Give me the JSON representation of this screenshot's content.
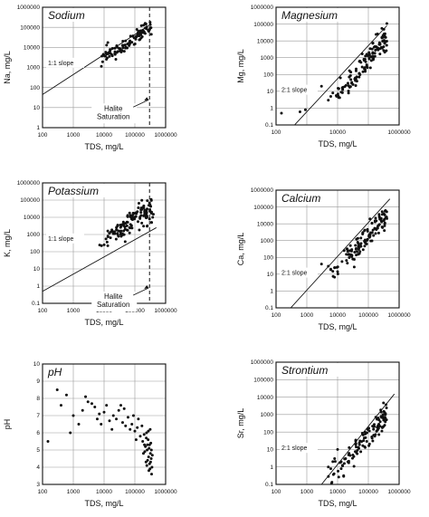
{
  "chart_data": [
    {
      "type": "scatter",
      "title": "Sodium",
      "xlabel": "TDS, mg/L",
      "ylabel": "Na, mg/L",
      "xscale": "log",
      "yscale": "log",
      "xlim": [
        100,
        1000000
      ],
      "ylim": [
        1,
        1000000
      ],
      "xticks": [
        "100",
        "1000",
        "10000",
        "100000",
        "1000000"
      ],
      "yticks": [
        "1",
        "10",
        "100",
        "1000",
        "10000",
        "100000",
        "1000000"
      ],
      "grid": true,
      "reference_line": {
        "label": "1:1 slope",
        "slope": 1,
        "points": [
          [
            100,
            45
          ],
          [
            300000,
            130000
          ]
        ]
      },
      "vertical_line": {
        "x": 300000,
        "style": "dashed"
      },
      "annotation": {
        "lines": [
          "Halite",
          "Saturation"
        ],
        "arrow_to": [
          300000,
          30
        ]
      },
      "cluster": {
        "x_range": [
          5000,
          350000
        ],
        "relation": "power",
        "coef": 0.3,
        "exp": 1,
        "spread": 0.18,
        "count": 110,
        "seed": 11
      }
    },
    {
      "type": "scatter",
      "title": "Magnesium",
      "xlabel": "TDS, mg/L",
      "ylabel": "Mg, mg/L",
      "xscale": "log",
      "yscale": "log",
      "xlim": [
        100,
        1000000
      ],
      "ylim": [
        0.1,
        1000000
      ],
      "xticks": [
        "100",
        "10000",
        "1000000"
      ],
      "yticks": [
        "0.1",
        "1",
        "10",
        "100",
        "1000",
        "10000",
        "100000",
        "1000000"
      ],
      "grid": true,
      "reference_line": {
        "label": "2:1 slope",
        "slope": 2,
        "points": [
          [
            400,
            0.1
          ],
          [
            400000,
            80000
          ]
        ]
      },
      "cluster": {
        "x_range": [
          5000,
          400000
        ],
        "relation": "power",
        "coef": 3e-08,
        "exp": 2.1,
        "spread": 0.35,
        "count": 130,
        "seed": 23
      },
      "outliers": [
        [
          150,
          0.5
        ],
        [
          600,
          0.6
        ],
        [
          900,
          0.8
        ],
        [
          3000,
          20
        ],
        [
          5000,
          3
        ],
        [
          6000,
          5
        ],
        [
          7000,
          8
        ]
      ]
    },
    {
      "type": "scatter",
      "title": "Potassium",
      "xlabel": "TDS, mg/L",
      "ylabel": "K, mg/L",
      "xscale": "log",
      "yscale": "log",
      "xlim": [
        100,
        1000000
      ],
      "ylim": [
        0.1,
        1000000
      ],
      "xticks": [
        "100",
        "1000",
        "10000",
        "100000",
        "1000000"
      ],
      "yticks": [
        "0.1",
        "1",
        "10",
        "100",
        "1000",
        "10000",
        "100000",
        "1000000"
      ],
      "grid": true,
      "reference_line": {
        "label": "1:1 slope",
        "slope": 1,
        "points": [
          [
            100,
            0.5
          ],
          [
            500000,
            2500
          ]
        ]
      },
      "vertical_line": {
        "x": 300000,
        "style": "dashed"
      },
      "annotation": {
        "lines": [
          "Halite",
          "Saturation"
        ],
        "arrow_to": [
          300000,
          1
        ]
      },
      "cluster": {
        "x_range": [
          5000,
          350000
        ],
        "relation": "power",
        "coef": 0.004,
        "exp": 1.25,
        "spread": 0.35,
        "count": 130,
        "seed": 37
      },
      "outliers": [
        [
          350000,
          5000
        ],
        [
          380000,
          10000
        ],
        [
          350000,
          20000
        ],
        [
          300000,
          8000
        ],
        [
          400000,
          15000
        ],
        [
          250000,
          3000
        ]
      ]
    },
    {
      "type": "scatter",
      "title": "Calcium",
      "xlabel": "TDS, mg/L",
      "ylabel": "Ca, mg/L",
      "xscale": "log",
      "yscale": "log",
      "xlim": [
        100,
        1000000
      ],
      "ylim": [
        0.1,
        1000000
      ],
      "xticks": [
        "100",
        "1000",
        "10000",
        "100000",
        "1000000"
      ],
      "yticks": [
        "0.1",
        "1",
        "10",
        "100",
        "1000",
        "10000",
        "100000",
        "1000000"
      ],
      "grid": true,
      "reference_line": {
        "label": "2:1 slope",
        "slope": 2,
        "points": [
          [
            300,
            0.1
          ],
          [
            500000,
            300000
          ]
        ]
      },
      "cluster": {
        "x_range": [
          5000,
          400000
        ],
        "relation": "power",
        "coef": 2e-07,
        "exp": 2.0,
        "spread": 0.3,
        "count": 130,
        "seed": 51
      },
      "outliers": [
        [
          6000,
          20
        ],
        [
          7000,
          15
        ],
        [
          5000,
          30
        ],
        [
          8000,
          25
        ],
        [
          3000,
          40
        ]
      ]
    },
    {
      "type": "scatter",
      "title": "pH",
      "xlabel": "TDS, mg/L",
      "ylabel": "pH",
      "xscale": "log",
      "yscale": "linear",
      "xlim": [
        100,
        1000000
      ],
      "ylim": [
        3,
        10
      ],
      "xticks": [
        "100",
        "1000",
        "10000",
        "100000",
        "1000000"
      ],
      "yticks": [
        "3",
        "4",
        "5",
        "6",
        "7",
        "8",
        "9",
        "10"
      ],
      "grid": true,
      "points": [
        [
          300,
          8.5
        ],
        [
          600,
          8.2
        ],
        [
          1000,
          7.0
        ],
        [
          1500,
          6.5
        ],
        [
          2000,
          7.3
        ],
        [
          3000,
          7.8
        ],
        [
          5000,
          7.5
        ],
        [
          6000,
          6.8
        ],
        [
          7000,
          7.1
        ],
        [
          8000,
          6.5
        ],
        [
          10000,
          7.2
        ],
        [
          15000,
          6.7
        ],
        [
          20000,
          7.0
        ],
        [
          25000,
          6.8
        ],
        [
          30000,
          7.3
        ],
        [
          40000,
          6.6
        ],
        [
          50000,
          6.4
        ],
        [
          60000,
          6.9
        ],
        [
          70000,
          6.2
        ],
        [
          80000,
          6.5
        ],
        [
          100000,
          6.1
        ],
        [
          120000,
          6.3
        ],
        [
          150000,
          5.8
        ],
        [
          180000,
          5.5
        ],
        [
          200000,
          5.9
        ],
        [
          220000,
          5.2
        ],
        [
          250000,
          5.0
        ],
        [
          280000,
          4.6
        ],
        [
          300000,
          4.2
        ],
        [
          320000,
          4.8
        ],
        [
          350000,
          3.6
        ],
        [
          330000,
          5.4
        ],
        [
          270000,
          5.6
        ],
        [
          240000,
          6.0
        ],
        [
          210000,
          4.9
        ],
        [
          360000,
          4.0
        ],
        [
          310000,
          3.9
        ],
        [
          290000,
          5.1
        ],
        [
          260000,
          4.4
        ],
        [
          150,
          5.5
        ],
        [
          400,
          7.6
        ],
        [
          800,
          6.0
        ],
        [
          2500,
          8.1
        ],
        [
          4000,
          7.7
        ],
        [
          12000,
          7.6
        ],
        [
          18000,
          6.2
        ],
        [
          35000,
          7.6
        ],
        [
          45000,
          7.4
        ],
        [
          90000,
          7.0
        ],
        [
          110000,
          5.6
        ],
        [
          130000,
          6.8
        ],
        [
          170000,
          6.4
        ],
        [
          190000,
          4.8
        ],
        [
          230000,
          4.3
        ],
        [
          340000,
          4.5
        ],
        [
          370000,
          4.7
        ],
        [
          300000,
          5.3
        ],
        [
          255000,
          5.3
        ],
        [
          245000,
          4.1
        ],
        [
          285000,
          3.8
        ],
        [
          315000,
          6.2
        ],
        [
          325000,
          4.3
        ],
        [
          275000,
          6.1
        ],
        [
          235000,
          5.7
        ],
        [
          205000,
          5.3
        ],
        [
          345000,
          5.0
        ]
      ]
    },
    {
      "type": "scatter",
      "title": "Strontium",
      "xlabel": "TDS, mg/L",
      "ylabel": "Sr, mg/L",
      "xscale": "log",
      "yscale": "log",
      "xlim": [
        100,
        1000000
      ],
      "ylim": [
        0.1,
        1000000
      ],
      "xticks": [
        "100",
        "1000",
        "10000",
        "100000",
        "1000000"
      ],
      "yticks": [
        "0.1",
        "1",
        "10",
        "100",
        "1000",
        "10000",
        "100000",
        "1000000"
      ],
      "grid": true,
      "reference_line": {
        "label": "2:1 slope",
        "slope": 2,
        "points": [
          [
            3000,
            0.1
          ],
          [
            700000,
            15000
          ]
        ]
      },
      "cluster": {
        "x_range": [
          5000,
          400000
        ],
        "relation": "power",
        "coef": 6e-09,
        "exp": 2.0,
        "spread": 0.35,
        "count": 120,
        "seed": 67
      },
      "outliers": [
        [
          5000,
          1
        ],
        [
          6000,
          0.8
        ],
        [
          7000,
          2
        ],
        [
          8000,
          3
        ],
        [
          10000,
          10
        ]
      ]
    }
  ]
}
